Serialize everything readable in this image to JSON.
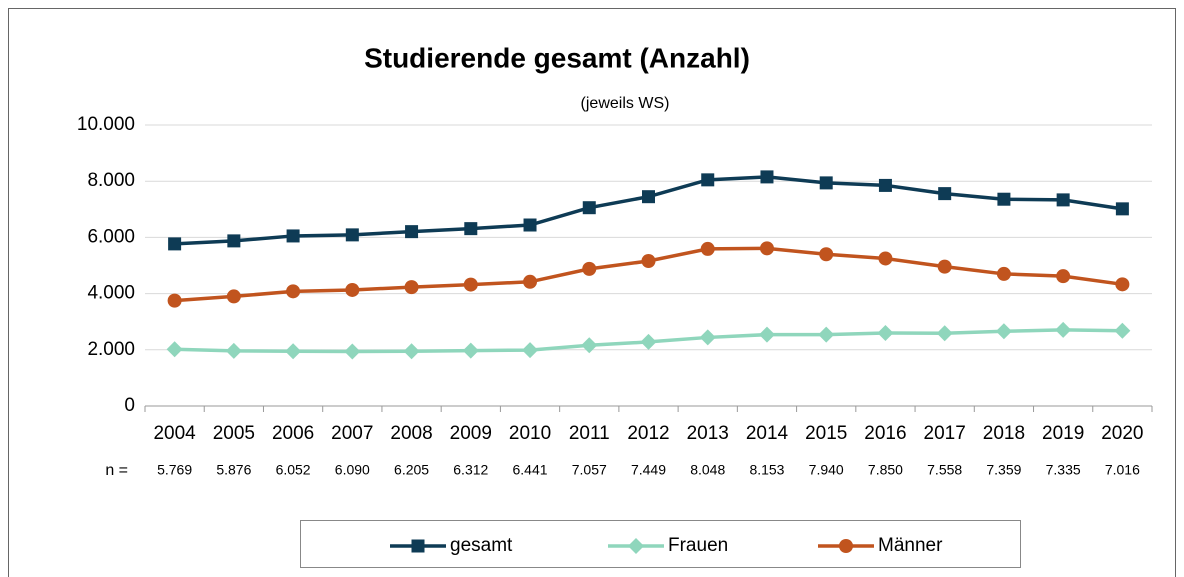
{
  "chart_data": {
    "type": "line",
    "title": "Studierende gesamt  (Anzahl)",
    "subtitle": "(jeweils  WS)",
    "categories": [
      "2004",
      "2005",
      "2006",
      "2007",
      "2008",
      "2009",
      "2010",
      "2011",
      "2012",
      "2013",
      "2014",
      "2015",
      "2016",
      "2017",
      "2018",
      "2019",
      "2020"
    ],
    "n_label": "n =",
    "series": [
      {
        "name": "gesamt",
        "color": "#0e3b55",
        "marker": "square",
        "values": [
          5769,
          5876,
          6052,
          6090,
          6205,
          6312,
          6441,
          7057,
          7449,
          8048,
          8153,
          7940,
          7850,
          7558,
          7359,
          7335,
          7016
        ],
        "value_labels": [
          "5.769",
          "5.876",
          "6.052",
          "6.090",
          "6.205",
          "6.312",
          "6.441",
          "7.057",
          "7.449",
          "8.048",
          "8.153",
          "7.940",
          "7.850",
          "7.558",
          "7.359",
          "7.335",
          "7.016"
        ]
      },
      {
        "name": "Frauen",
        "color": "#8fd6bc",
        "marker": "diamond",
        "values": [
          2020,
          1960,
          1950,
          1940,
          1950,
          1970,
          1990,
          2160,
          2280,
          2440,
          2540,
          2540,
          2600,
          2590,
          2660,
          2710,
          2680
        ]
      },
      {
        "name": "Männer",
        "color": "#c1541e",
        "marker": "circle",
        "values": [
          3750,
          3900,
          4080,
          4130,
          4230,
          4320,
          4420,
          4880,
          5160,
          5590,
          5610,
          5400,
          5250,
          4960,
          4700,
          4620,
          4330
        ]
      }
    ],
    "ylim": [
      0,
      10000
    ],
    "yticks": [
      0,
      {
        "value": 2000,
        "label": "2.000"
      },
      {
        "value": 4000,
        "label": "4.000"
      },
      {
        "value": 6000,
        "label": "6.000"
      },
      {
        "value": 8000,
        "label": "8.000"
      },
      {
        "value": 10000,
        "label": "10.000"
      }
    ],
    "grid": true,
    "legend": "bottom"
  }
}
